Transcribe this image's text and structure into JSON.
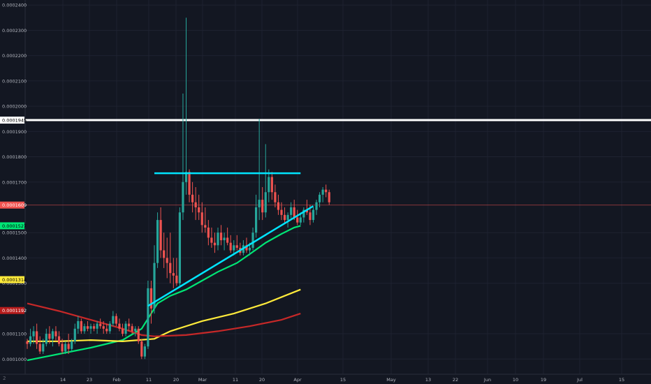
{
  "theme": {
    "background": "#131722",
    "grid": "#1e2230",
    "axis_text": "#b2b5be",
    "candle_up": "#26a69a",
    "candle_down": "#ef5350",
    "support_line": "#00e5ff",
    "resistance_line": "#ffffff"
  },
  "corner_label": "2",
  "chart_data": {
    "type": "candlestick",
    "grid": true,
    "y_axis_side": "left",
    "ylim": [
      9.4e-05,
      0.000242
    ],
    "y_tick_labels": [
      "0.0002400",
      "0.0002300",
      "0.0002200",
      "0.0002100",
      "0.0002000",
      "0.0001900",
      "0.0001800",
      "0.0001700",
      "0.0001500",
      "0.0001400",
      "0.0001300",
      "0.0001100",
      "0.0001000"
    ],
    "x_tick_labels": [
      "14",
      "23",
      "Feb",
      "11",
      "20",
      "Mar",
      "11",
      "20",
      "Apr",
      "15",
      "May",
      "13",
      "22",
      "Jun",
      "10",
      "19",
      "Jul",
      "15"
    ],
    "price_labels": [
      {
        "text": "0.0001945",
        "value": 0.0001945,
        "bg": "#ffffff",
        "fg": "#000000"
      },
      {
        "text": "0.0001609",
        "value": 0.0001609,
        "bg": "#ef5350",
        "fg": "#ffffff"
      },
      {
        "text": "0.0001527",
        "value": 0.0001527,
        "bg": "#00e676",
        "fg": "#000000"
      },
      {
        "text": "0.0001314",
        "value": 0.0001314,
        "bg": "#ffeb3b",
        "fg": "#000000"
      },
      {
        "text": "0.0001192",
        "value": 0.0001192,
        "bg": "#b71c1c",
        "fg": "#ffffff"
      }
    ],
    "horizontal_lines": [
      {
        "value": 0.0001945,
        "color": "#ffffff"
      },
      {
        "value": 0.0001609,
        "color": "#ef5350"
      }
    ],
    "candles": [
      [
        0.000107,
        0.000108,
        0.000104,
        0.000106
      ],
      [
        0.000106,
        0.000112,
        0.000105,
        0.000109
      ],
      [
        0.000109,
        0.000113,
        0.000106,
        0.000111
      ],
      [
        0.000111,
        0.000114,
        0.000104,
        0.000106
      ],
      [
        0.000106,
        0.000109,
        0.000102,
        0.000103
      ],
      [
        0.000103,
        0.000108,
        0.000102,
        0.000106
      ],
      [
        0.000106,
        0.000112,
        0.000105,
        0.00011
      ],
      [
        0.00011,
        0.000113,
        0.000106,
        0.000108
      ],
      [
        0.000108,
        0.000112,
        0.000105,
        0.000111
      ],
      [
        0.000111,
        0.000113,
        0.000107,
        0.000109
      ],
      [
        0.000109,
        0.000111,
        0.000105,
        0.000106
      ],
      [
        0.000106,
        0.000108,
        0.000102,
        0.000103
      ],
      [
        0.000103,
        0.000107,
        0.000102,
        0.000106
      ],
      [
        0.000106,
        0.00011,
        0.000102,
        0.000104
      ],
      [
        0.000104,
        0.000108,
        0.000103,
        0.000107
      ],
      [
        0.000107,
        0.000114,
        0.000106,
        0.000112
      ],
      [
        0.000112,
        0.000117,
        0.00011,
        0.000115
      ],
      [
        0.000115,
        0.000116,
        0.00011,
        0.000111
      ],
      [
        0.000111,
        0.000114,
        0.00011,
        0.000113
      ],
      [
        0.000113,
        0.000115,
        0.000111,
        0.000112
      ],
      [
        0.000112,
        0.000114,
        0.00011,
        0.000113
      ],
      [
        0.000113,
        0.000114,
        0.000111,
        0.000112
      ],
      [
        0.000112,
        0.000115,
        0.00011,
        0.000114
      ],
      [
        0.000114,
        0.000116,
        0.000112,
        0.000113
      ],
      [
        0.000113,
        0.000115,
        0.00011,
        0.000112
      ],
      [
        0.000112,
        0.000114,
        0.00011,
        0.000111
      ],
      [
        0.000111,
        0.000115,
        0.00011,
        0.000114
      ],
      [
        0.000114,
        0.000119,
        0.000113,
        0.000117
      ],
      [
        0.000117,
        0.000118,
        0.000113,
        0.000114
      ],
      [
        0.000114,
        0.000116,
        0.000111,
        0.000112
      ],
      [
        0.000112,
        0.000114,
        0.000109,
        0.00011
      ],
      [
        0.00011,
        0.000115,
        0.000109,
        0.000114
      ],
      [
        0.000114,
        0.000116,
        0.000111,
        0.000113
      ],
      [
        0.000113,
        0.000114,
        0.00011,
        0.000111
      ],
      [
        0.000111,
        0.000113,
        0.000109,
        0.000112
      ],
      [
        0.000112,
        0.000113,
        0.000106,
        0.000107
      ],
      [
        0.000107,
        0.000108,
        0.0001,
        0.000101
      ],
      [
        0.000101,
        0.000106,
        0.0001,
        0.000105
      ],
      [
        0.000105,
        0.000131,
        0.000104,
        0.000128
      ],
      [
        0.000128,
        0.000131,
        0.000114,
        0.00012
      ],
      [
        0.00012,
        0.000145,
        0.000118,
        0.000138
      ],
      [
        0.000138,
        0.000158,
        0.000136,
        0.000155
      ],
      [
        0.000155,
        0.00016,
        0.00014,
        0.000143
      ],
      [
        0.000143,
        0.00015,
        0.000136,
        0.00014
      ],
      [
        0.00014,
        0.000148,
        0.000132,
        0.000138
      ],
      [
        0.000138,
        0.00015,
        0.00013,
        0.000134
      ],
      [
        0.000134,
        0.00014,
        0.000128,
        0.000133
      ],
      [
        0.000133,
        0.00014,
        0.000129,
        0.00013
      ],
      [
        0.00013,
        0.00016,
        0.000129,
        0.000158
      ],
      [
        0.000158,
        0.000205,
        0.000155,
        0.00017
      ],
      [
        0.00017,
        0.000235,
        0.000165,
        0.000174
      ],
      [
        0.000174,
        0.000175,
        0.000162,
        0.000165
      ],
      [
        0.000165,
        0.00017,
        0.000158,
        0.000162
      ],
      [
        0.000162,
        0.000168,
        0.000155,
        0.00016
      ],
      [
        0.00016,
        0.000165,
        0.000155,
        0.000158
      ],
      [
        0.000158,
        0.000162,
        0.00015,
        0.000153
      ],
      [
        0.000153,
        0.00016,
        0.00015,
        0.000152
      ],
      [
        0.000152,
        0.000155,
        0.000145,
        0.000148
      ],
      [
        0.000148,
        0.000152,
        0.000144,
        0.000146
      ],
      [
        0.000146,
        0.00015,
        0.000142,
        0.000145
      ],
      [
        0.000145,
        0.000152,
        0.000143,
        0.00015
      ],
      [
        0.00015,
        0.000153,
        0.000145,
        0.000147
      ],
      [
        0.000147,
        0.00015,
        0.000143,
        0.000148
      ],
      [
        0.000148,
        0.000152,
        0.000145,
        0.000146
      ],
      [
        0.000146,
        0.000149,
        0.000142,
        0.000143
      ],
      [
        0.000143,
        0.000147,
        0.000141,
        0.000145
      ],
      [
        0.000145,
        0.000149,
        0.000143,
        0.000144
      ],
      [
        0.000144,
        0.000146,
        0.000141,
        0.000142
      ],
      [
        0.000142,
        0.000147,
        0.000141,
        0.000145
      ],
      [
        0.000145,
        0.000148,
        0.000142,
        0.000143
      ],
      [
        0.000143,
        0.000146,
        0.000141,
        0.000144
      ],
      [
        0.000144,
        0.000152,
        0.000143,
        0.00015
      ],
      [
        0.00015,
        0.000165,
        0.000148,
        0.00016
      ],
      [
        0.00016,
        0.000195,
        0.000155,
        0.000163
      ],
      [
        0.000163,
        0.000168,
        0.000155,
        0.000158
      ],
      [
        0.000158,
        0.000185,
        0.000156,
        0.000166
      ],
      [
        0.000166,
        0.000175,
        0.000162,
        0.000172
      ],
      [
        0.000172,
        0.000174,
        0.000163,
        0.000166
      ],
      [
        0.000166,
        0.000169,
        0.00016,
        0.000162
      ],
      [
        0.000162,
        0.000165,
        0.000157,
        0.000159
      ],
      [
        0.000159,
        0.000162,
        0.000155,
        0.000157
      ],
      [
        0.000157,
        0.00016,
        0.000154,
        0.000155
      ],
      [
        0.000155,
        0.000158,
        0.000152,
        0.000157
      ],
      [
        0.000157,
        0.000162,
        0.000155,
        0.00016
      ],
      [
        0.00016,
        0.000163,
        0.000155,
        0.000156
      ],
      [
        0.000156,
        0.000159,
        0.000153,
        0.000154
      ],
      [
        0.000154,
        0.000158,
        0.000153,
        0.000156
      ],
      [
        0.000156,
        0.00016,
        0.000154,
        0.000159
      ],
      [
        0.000159,
        0.000163,
        0.000157,
        0.000158
      ],
      [
        0.000158,
        0.000161,
        0.000153,
        0.000155
      ],
      [
        0.000155,
        0.00016,
        0.000154,
        0.000159
      ],
      [
        0.000159,
        0.000163,
        0.000157,
        0.000162
      ],
      [
        0.000162,
        0.000166,
        0.00016,
        0.000165
      ],
      [
        0.000165,
        0.000168,
        0.000162,
        0.000167
      ],
      [
        0.000167,
        0.000169,
        0.000164,
        0.000166
      ],
      [
        0.000166,
        0.000167,
        0.000161,
        0.000162
      ]
    ],
    "moving_averages": [
      {
        "color": "#00e676",
        "values": [
          [
            0,
            9.95e-05
          ],
          [
            10,
            0.000102
          ],
          [
            20,
            0.0001045
          ],
          [
            30,
            0.0001075
          ],
          [
            36,
            0.000112
          ],
          [
            41,
            0.000122
          ],
          [
            45,
            0.000125
          ],
          [
            50,
            0.0001275
          ],
          [
            55,
            0.000131
          ],
          [
            60,
            0.0001345
          ],
          [
            66,
            0.000138
          ],
          [
            70,
            0.0001415
          ],
          [
            75,
            0.000146
          ],
          [
            80,
            0.0001495
          ],
          [
            84,
            0.000152
          ],
          [
            86,
            0.0001527
          ]
        ]
      },
      {
        "color": "#ffeb3b",
        "values": [
          [
            0,
            0.000107
          ],
          [
            10,
            0.000107
          ],
          [
            20,
            0.0001075
          ],
          [
            30,
            0.000107
          ],
          [
            40,
            0.000108
          ],
          [
            45,
            0.000111
          ],
          [
            55,
            0.000115
          ],
          [
            65,
            0.000118
          ],
          [
            75,
            0.000122
          ],
          [
            81,
            0.000125
          ],
          [
            86,
            0.0001275
          ]
        ]
      },
      {
        "color": "#c62828",
        "values": [
          [
            0,
            0.000122
          ],
          [
            10,
            0.000119
          ],
          [
            20,
            0.0001155
          ],
          [
            30,
            0.000112
          ],
          [
            36,
            0.0001095
          ],
          [
            40,
            0.000109
          ],
          [
            50,
            0.0001095
          ],
          [
            60,
            0.000111
          ],
          [
            70,
            0.000113
          ],
          [
            80,
            0.0001155
          ],
          [
            86,
            0.000118
          ]
        ]
      }
    ],
    "trendlines": [
      {
        "color": "#00e5ff",
        "from": [
          40,
          0.0001735
        ],
        "to": [
          86,
          0.0001735
        ]
      },
      {
        "color": "#00e5ff",
        "from": [
          38,
          0.000121
        ],
        "to": [
          90,
          0.0001605
        ]
      }
    ]
  }
}
